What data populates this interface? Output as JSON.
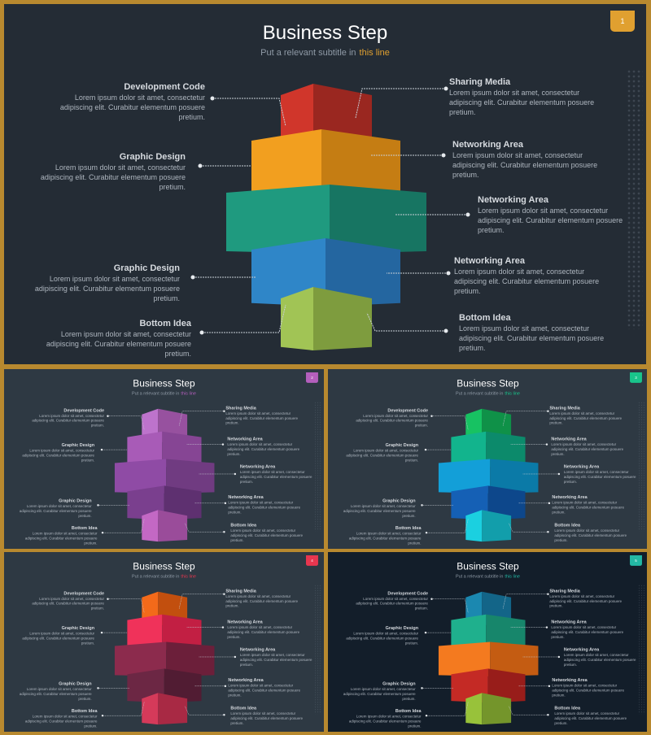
{
  "slides": [
    {
      "id": "s1",
      "badge": "1",
      "bg": "#242c35",
      "accent": "#e0a030",
      "colors": [
        [
          "#d0362b",
          "#9a2720"
        ],
        [
          "#f29f1f",
          "#c57d13"
        ],
        [
          "#1f9a7f",
          "#177562"
        ],
        [
          "#2f86c8",
          "#2466a0"
        ],
        [
          "#a1c455",
          "#7e9c3e"
        ]
      ]
    },
    {
      "id": "s2",
      "badge": "2",
      "bg": "#2e3943",
      "accent": "#b45fbd",
      "colors": [
        [
          "#bd73cc",
          "#97519f"
        ],
        [
          "#a85bb7",
          "#864594"
        ],
        [
          "#8f4ba5",
          "#703b81"
        ],
        [
          "#7a3f8e",
          "#5e3070"
        ],
        [
          "#c368c4",
          "#9a4c9a"
        ]
      ]
    },
    {
      "id": "s3",
      "badge": "3",
      "bg": "#2e3943",
      "accent": "#19c48b",
      "colors": [
        [
          "#17c262",
          "#0f9148"
        ],
        [
          "#12b48d",
          "#0c8a6b"
        ],
        [
          "#139fd8",
          "#0b7aa7"
        ],
        [
          "#1560b5",
          "#0d478b"
        ],
        [
          "#1bd0e0",
          "#129eab"
        ]
      ]
    },
    {
      "id": "s4",
      "badge": "4",
      "bg": "#2e3943",
      "accent": "#e8364f",
      "colors": [
        [
          "#f36a1a",
          "#c24f0e"
        ],
        [
          "#f0325a",
          "#c21f43"
        ],
        [
          "#8c2b4d",
          "#6c1f3a"
        ],
        [
          "#6c2744",
          "#511c33"
        ],
        [
          "#d53a5a",
          "#a82944"
        ]
      ]
    },
    {
      "id": "s5",
      "badge": "5",
      "bg": "#131e2a",
      "accent": "#23b8a4",
      "colors": [
        [
          "#1b88b0",
          "#136588"
        ],
        [
          "#1fb08d",
          "#17866b"
        ],
        [
          "#f47a1f",
          "#c45c12"
        ],
        [
          "#c42a25",
          "#981d1a"
        ],
        [
          "#98c23a",
          "#74952b"
        ]
      ]
    }
  ],
  "title": "Business Step",
  "subtitle_pre": "Put a relevant subtitle in",
  "subtitle_hl": "this line",
  "labels_left": [
    {
      "title": "Development Code",
      "text": "Lorem ipsum dolor sit amet, consectetur adipiscing elit. Curabitur elementum posuere pretium."
    },
    {
      "title": "Graphic Design",
      "text": "Lorem ipsum dolor sit amet, consectetur adipiscing elit. Curabitur elementum posuere pretium."
    },
    {
      "title": "Graphic Design",
      "text": "Lorem ipsum dolor sit amet, consectetur adipiscing elit. Curabitur elementum posuere pretium."
    },
    {
      "title": "Bottom Idea",
      "text": "Lorem ipsum dolor sit amet, consectetur adipiscing elit. Curabitur elementum posuere pretium."
    }
  ],
  "labels_right": [
    {
      "title": "Sharing Media",
      "text": "Lorem ipsum dolor sit amet, consectetur adipiscing elit. Curabitur elementum posuere pretium."
    },
    {
      "title": "Networking Area",
      "text": "Lorem ipsum dolor sit amet, consectetur adipiscing elit. Curabitur elementum posuere pretium."
    },
    {
      "title": "Networking Area",
      "text": "Lorem ipsum dolor sit amet, consectetur adipiscing elit. Curabitur elementum posuere pretium."
    },
    {
      "title": "Networking Area",
      "text": "Lorem ipsum dolor sit amet, consectetur adipiscing elit. Curabitur elementum posuere pretium."
    },
    {
      "title": "Bottom Idea",
      "text": "Lorem ipsum dolor sit amet, consectetur adipiscing elit. Curabitur elementum posuere pretium."
    }
  ]
}
